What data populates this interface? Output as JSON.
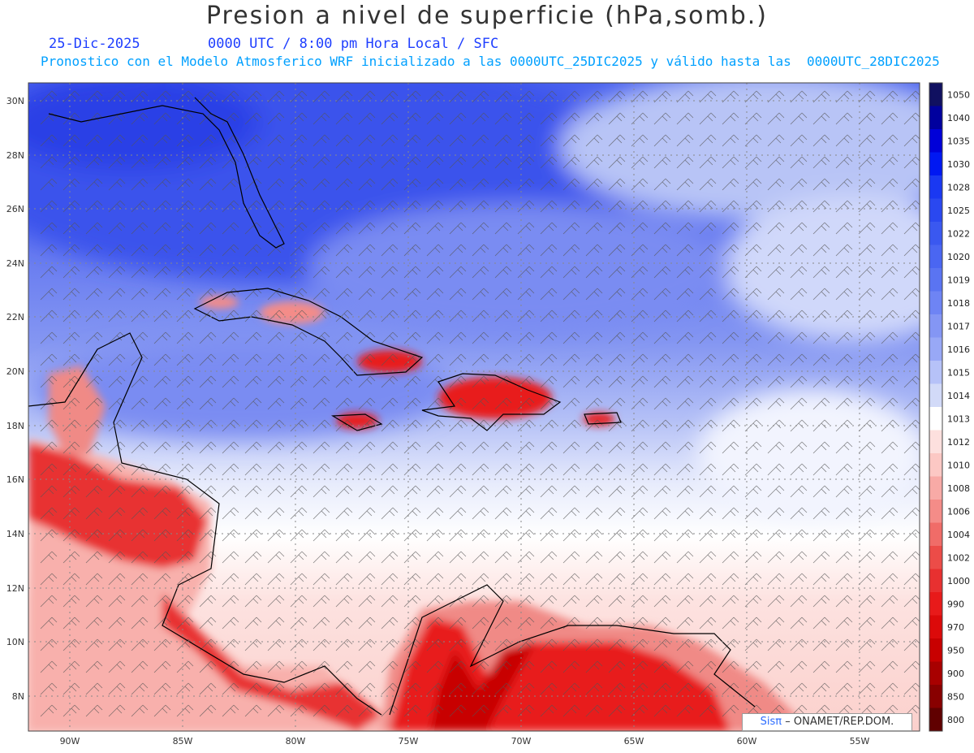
{
  "header": {
    "title": "Presion a nivel de superficie (hPa,somb.)",
    "date": "25-Dic-2025",
    "time": "0000 UTC / 8:00 pm Hora Local / SFC",
    "model_line": "Pronostico con el Modelo Atmosferico WRF inicializado a las 0000UTC_25DIC2025 y válido hasta las  0000UTC_28DIC2025"
  },
  "map": {
    "lat_labels": [
      "30N",
      "28N",
      "26N",
      "24N",
      "22N",
      "20N",
      "18N",
      "16N",
      "14N",
      "12N",
      "10N",
      "8N"
    ],
    "lon_labels": [
      "90W",
      "85W",
      "80W",
      "75W",
      "70W",
      "65W",
      "60W",
      "55W"
    ]
  },
  "colorbar": {
    "levels": [
      "1050",
      "1040",
      "1035",
      "1030",
      "1028",
      "1025",
      "1022",
      "1020",
      "1019",
      "1018",
      "1017",
      "1016",
      "1015",
      "1014",
      "1013",
      "1012",
      "1010",
      "1008",
      "1006",
      "1004",
      "1002",
      "1000",
      "990",
      "970",
      "950",
      "900",
      "850",
      "800"
    ],
    "colors": [
      "#101060",
      "#00009e",
      "#0000d8",
      "#0018f2",
      "#1a38f2",
      "#2a48f0",
      "#3a58f0",
      "#4a66f2",
      "#5a74f2",
      "#6e84f4",
      "#8496f4",
      "#98a8f6",
      "#b6c2f8",
      "#d2daf8",
      "#ffffff",
      "#fde0de",
      "#fcc8c4",
      "#f8aaa6",
      "#f48c88",
      "#f06c68",
      "#ec4c48",
      "#e83030",
      "#e81a1a",
      "#dc0a0a",
      "#c80000",
      "#a80000",
      "#880000",
      "#600000"
    ]
  },
  "footer": {
    "logo": "Sisπ",
    "credit": "– ONAMET/REP.DOM."
  }
}
